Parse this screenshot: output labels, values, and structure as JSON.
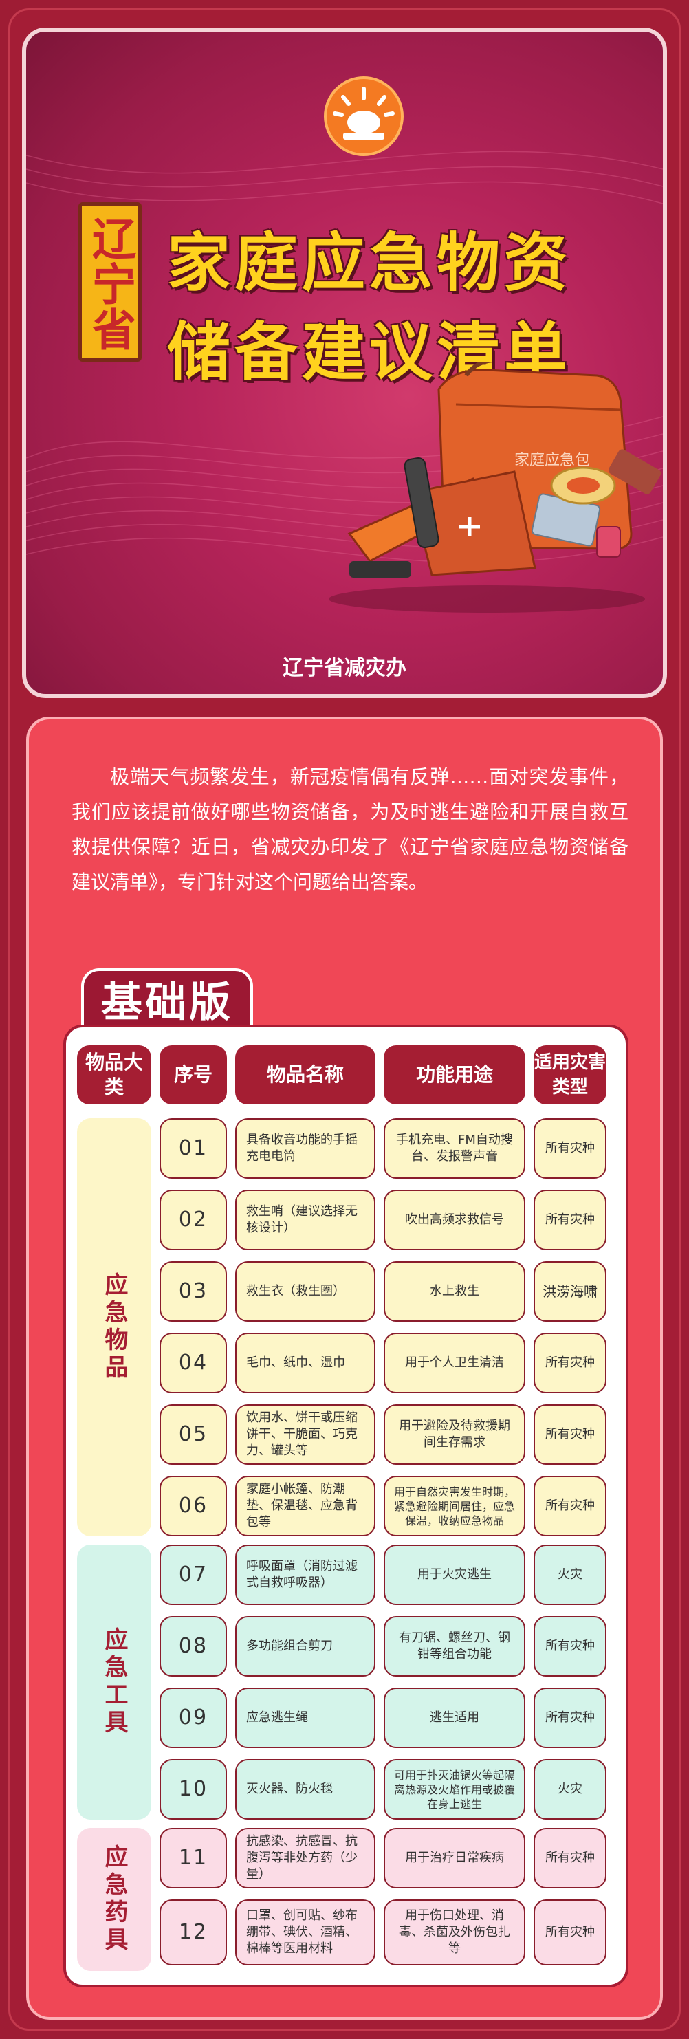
{
  "hero": {
    "province": "辽宁省",
    "title_line1": "家庭应急物资",
    "title_line2": "储备建议清单",
    "bag_label": "家庭应急包",
    "org": "辽宁省减灾办"
  },
  "intro": "极端天气频繁发生，新冠疫情偶有反弹……面对突发事件，我们应该提前做好哪些物资储备，为及时逃生避险和开展自救互救提供保障？近日，省减灾办印发了《辽宁省家庭应急物资储备建议清单》，专门针对这个问题给出答案。",
  "edition": "基础版",
  "headers": {
    "category": "物品大类",
    "no": "序号",
    "name": "物品名称",
    "use": "功能用途",
    "disaster": "适用灾害类型"
  },
  "categories": [
    "应急物品",
    "应急工具",
    "应急药具"
  ],
  "rows": [
    {
      "no": "01",
      "name": "具备收音功能的手摇充电电筒",
      "use": "手机充电、FM自动搜台、发报警声音",
      "disaster": "所有灾种"
    },
    {
      "no": "02",
      "name": "救生哨（建议选择无核设计）",
      "use": "吹出高频求救信号",
      "disaster": "所有灾种"
    },
    {
      "no": "03",
      "name": "救生衣（救生圈）",
      "use": "水上救生",
      "disaster": "洪涝海啸"
    },
    {
      "no": "04",
      "name": "毛巾、纸巾、湿巾",
      "use": "用于个人卫生清洁",
      "disaster": "所有灾种"
    },
    {
      "no": "05",
      "name": "饮用水、饼干或压缩饼干、干脆面、巧克力、罐头等",
      "use": "用于避险及待救援期间生存需求",
      "disaster": "所有灾种"
    },
    {
      "no": "06",
      "name": "家庭小帐篷、防潮垫、保温毯、应急背包等",
      "use": "用于自然灾害发生时期，紧急避险期间居住，应急保温，收纳应急物品",
      "disaster": "所有灾种"
    },
    {
      "no": "07",
      "name": "呼吸面罩（消防过滤式自救呼吸器）",
      "use": "用于火灾逃生",
      "disaster": "火灾"
    },
    {
      "no": "08",
      "name": "多功能组合剪刀",
      "use": "有刀锯、螺丝刀、钢钳等组合功能",
      "disaster": "所有灾种"
    },
    {
      "no": "09",
      "name": "应急逃生绳",
      "use": "逃生适用",
      "disaster": "所有灾种"
    },
    {
      "no": "10",
      "name": "灭火器、防火毯",
      "use": "可用于扑灭油锅火等起隔离热源及火焰作用或披覆在身上逃生",
      "disaster": "火灾"
    },
    {
      "no": "11",
      "name": "抗感染、抗感冒、抗腹泻等非处方药（少量）",
      "use": "用于治疗日常疾病",
      "disaster": "所有灾种"
    },
    {
      "no": "12",
      "name": "口罩、创可贴、纱布绷带、碘伏、酒精、棉棒等医用材料",
      "use": "用于伤口处理、消毒、杀菌及外伤包扎等",
      "disaster": "所有灾种"
    }
  ],
  "colors": {
    "primary": "#a51e33",
    "title": "#ffd21e",
    "card": "#f04756",
    "yellow": "#fdf6c8",
    "green": "#d4f4ea",
    "pink": "#fbdce6"
  }
}
